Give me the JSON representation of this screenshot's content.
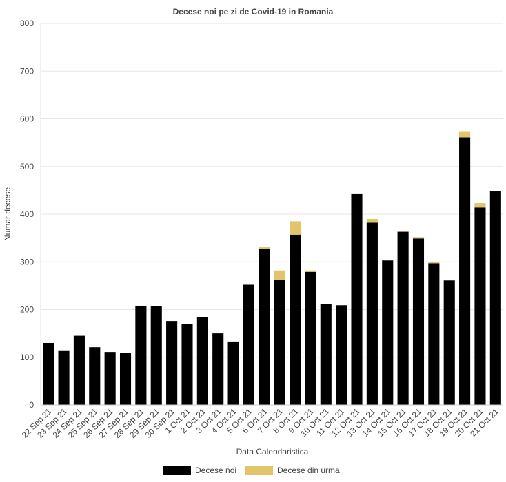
{
  "chart_data": {
    "type": "bar",
    "stacked": true,
    "title": "Decese noi pe zi de Covid-19 in Romania",
    "xlabel": "Data Calendaristica",
    "ylabel": "Numar decese",
    "ylim": [
      0,
      800
    ],
    "yticks": [
      0,
      100,
      200,
      300,
      400,
      500,
      600,
      700,
      800
    ],
    "grid": true,
    "legend_position": "bottom",
    "categories": [
      "22 Sep 21",
      "23 Sep 21",
      "24 Sep 21",
      "25 Sep 21",
      "26 Sep 21",
      "27 Sep 21",
      "28 Sep 21",
      "29 Sep 21",
      "30 Sep 21",
      "1 Oct 21",
      "2 Oct 21",
      "3 Oct 21",
      "4 Oct 21",
      "5 Oct 21",
      "6 Oct 21",
      "7 Oct 21",
      "8 Oct 21",
      "9 Oct 21",
      "10 Oct 21",
      "11 Oct 21",
      "12 Oct 21",
      "13 Oct 21",
      "14 Oct 21",
      "15 Oct 21",
      "16 Oct 21",
      "17 Oct 21",
      "18 Oct 21",
      "19 Oct 21",
      "20 Oct 21",
      "21 Oct 21"
    ],
    "series": [
      {
        "name": "Decese noi",
        "color": "#000000",
        "values": [
          130,
          113,
          145,
          121,
          111,
          109,
          208,
          207,
          176,
          169,
          184,
          150,
          133,
          252,
          328,
          263,
          357,
          279,
          211,
          209,
          442,
          382,
          303,
          363,
          349,
          297,
          261,
          561,
          414,
          448
        ]
      },
      {
        "name": "Decese din urma",
        "color": "#e2c46c",
        "values": [
          0,
          0,
          0,
          0,
          0,
          0,
          0,
          0,
          0,
          0,
          0,
          0,
          0,
          0,
          3,
          19,
          28,
          3,
          0,
          0,
          0,
          8,
          1,
          2,
          3,
          2,
          0,
          13,
          9,
          0
        ]
      }
    ]
  }
}
